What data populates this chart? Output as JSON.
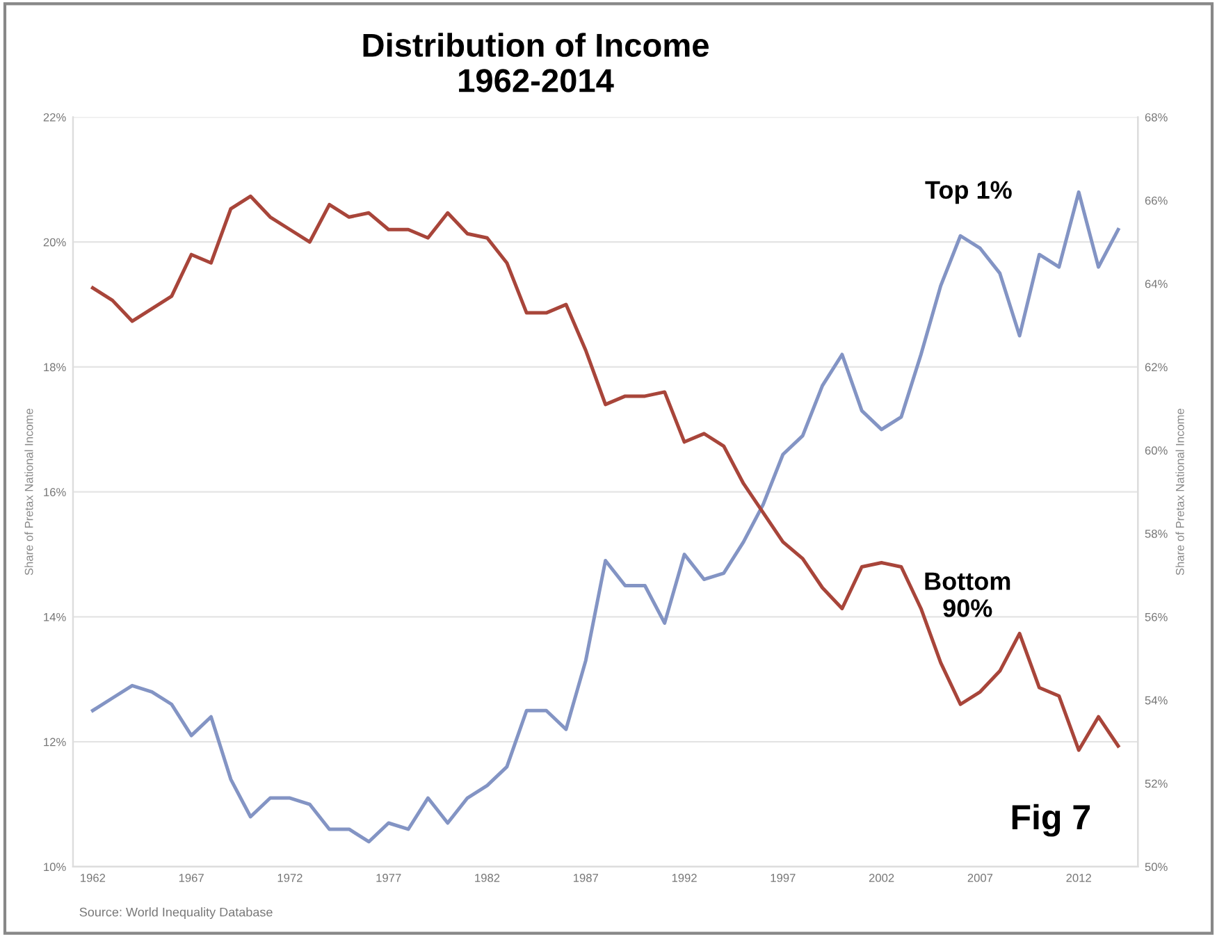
{
  "chart_data": {
    "type": "line",
    "title": "Distribution of Income\n1962-2014",
    "x": [
      1962,
      1963,
      1964,
      1965,
      1966,
      1967,
      1968,
      1969,
      1970,
      1971,
      1972,
      1973,
      1974,
      1975,
      1976,
      1977,
      1978,
      1979,
      1980,
      1981,
      1982,
      1983,
      1984,
      1985,
      1986,
      1987,
      1988,
      1989,
      1990,
      1991,
      1992,
      1993,
      1994,
      1995,
      1996,
      1997,
      1998,
      1999,
      2000,
      2001,
      2002,
      2003,
      2004,
      2005,
      2006,
      2007,
      2008,
      2009,
      2010,
      2011,
      2012,
      2013,
      2014
    ],
    "series": [
      {
        "name": "Top 1%",
        "color": "#8394c4",
        "values": [
          12.5,
          12.7,
          12.9,
          12.8,
          12.6,
          12.1,
          12.4,
          11.4,
          10.8,
          11.1,
          11.1,
          11.0,
          10.6,
          10.6,
          10.4,
          10.7,
          10.6,
          11.1,
          10.7,
          11.1,
          11.3,
          11.6,
          12.5,
          12.5,
          12.2,
          13.3,
          14.9,
          14.5,
          14.5,
          13.9,
          15.0,
          14.6,
          14.7,
          15.2,
          15.8,
          16.6,
          16.9,
          17.7,
          18.2,
          17.3,
          17.0,
          17.2,
          18.2,
          19.3,
          20.1,
          19.9,
          19.5,
          18.5,
          19.8,
          19.6,
          20.8,
          19.6,
          20.2
        ]
      },
      {
        "name": "Bottom 90%",
        "color": "#a8453a",
        "axis": "y2",
        "values": [
          63.9,
          63.6,
          63.1,
          63.4,
          63.7,
          64.7,
          64.5,
          65.8,
          66.1,
          65.6,
          65.3,
          65.0,
          65.9,
          65.6,
          65.7,
          65.3,
          65.3,
          65.1,
          65.7,
          65.2,
          65.1,
          64.5,
          63.3,
          63.3,
          63.5,
          62.4,
          61.1,
          61.3,
          61.3,
          61.4,
          60.2,
          60.4,
          60.1,
          59.2,
          58.5,
          57.8,
          57.4,
          56.7,
          56.2,
          57.2,
          57.3,
          57.2,
          56.2,
          54.9,
          53.9,
          54.2,
          54.7,
          55.6,
          54.3,
          54.1,
          52.8,
          53.6,
          52.9
        ]
      }
    ],
    "xlim": [
      1961,
      2015
    ],
    "xticks": [
      1962,
      1967,
      1972,
      1977,
      1982,
      1987,
      1992,
      1997,
      2002,
      2007,
      2012
    ],
    "ylim": [
      10,
      22
    ],
    "yticks": [
      {
        "value": 10,
        "label": "10%"
      },
      {
        "value": 12,
        "label": "12%"
      },
      {
        "value": 14,
        "label": "14%"
      },
      {
        "value": 16,
        "label": "16%"
      },
      {
        "value": 18,
        "label": "18%"
      },
      {
        "value": 20,
        "label": "20%"
      },
      {
        "value": 22,
        "label": "22%"
      }
    ],
    "y2lim": [
      50,
      68
    ],
    "y2ticks": [
      {
        "value": 50,
        "label": "50%"
      },
      {
        "value": 52,
        "label": "52%"
      },
      {
        "value": 54,
        "label": "54%"
      },
      {
        "value": 56,
        "label": "56%"
      },
      {
        "value": 58,
        "label": "58%"
      },
      {
        "value": 60,
        "label": "60%"
      },
      {
        "value": 62,
        "label": "62%"
      },
      {
        "value": 64,
        "label": "64%"
      },
      {
        "value": 66,
        "label": "66%"
      },
      {
        "value": 68,
        "label": "68%"
      }
    ],
    "ylabel": "Share of Pretax National Income",
    "y2label": "Share of Pretax National Income",
    "grid": "y",
    "legend": false,
    "marker": "none",
    "line_style": "solid",
    "annotations": [
      "Fig 7",
      "Source: World Inequality Database"
    ]
  }
}
